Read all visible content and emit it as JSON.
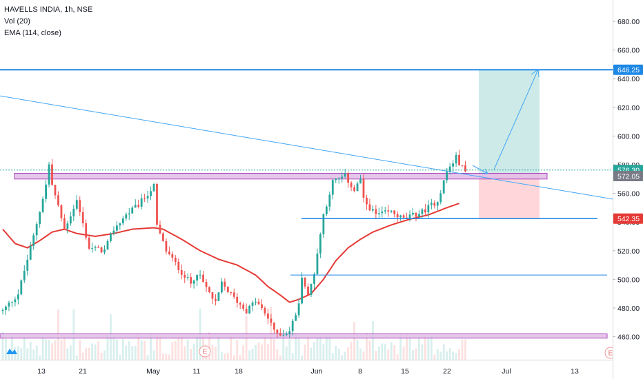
{
  "legend": {
    "symbol": "HAVELLS INDIA, 1h, NSE",
    "volume": "Vol (20)",
    "ema": "EMA (114, close)"
  },
  "colors": {
    "up": "#26a69a",
    "down": "#ef5350",
    "ema": "#e53935",
    "trendline": "#42a5f5",
    "hline": "#1e88e5",
    "zone_fill": "#e1bee7",
    "zone_stroke": "#9c27b0",
    "target_fill": "#b2dfdb",
    "stop_fill": "#ffcdd2"
  },
  "chart_data": {
    "type": "candlestick",
    "x_labels": [
      "13",
      "21",
      "May",
      "11",
      "18",
      "Jun",
      "8",
      "15",
      "22",
      "Jul",
      "13"
    ],
    "y_ticks": [
      460,
      480,
      500,
      520,
      540,
      560,
      580,
      600,
      620,
      640,
      660,
      680
    ],
    "ylim": [
      447,
      694
    ],
    "price_labels": [
      {
        "value": 646.25,
        "text": "646.25",
        "color": "#1e88e5"
      },
      {
        "value": 576.3,
        "text": "576.30",
        "color": "#26a69a"
      },
      {
        "value": 572.05,
        "text": "572.05",
        "color": "#787b86"
      },
      {
        "value": 542.35,
        "text": "542.35",
        "color": "#e53935"
      }
    ],
    "price_path": [
      [
        0,
        478
      ],
      [
        5,
        490
      ],
      [
        10,
        530
      ],
      [
        14,
        566
      ],
      [
        15,
        580
      ],
      [
        16,
        566
      ],
      [
        20,
        535
      ],
      [
        24,
        555
      ],
      [
        28,
        522
      ],
      [
        33,
        520
      ],
      [
        36,
        535
      ],
      [
        40,
        545
      ],
      [
        44,
        552
      ],
      [
        49,
        565
      ],
      [
        50,
        537
      ],
      [
        53,
        520
      ],
      [
        58,
        505
      ],
      [
        61,
        497
      ],
      [
        63,
        505
      ],
      [
        69,
        483
      ],
      [
        71,
        497
      ],
      [
        75,
        487
      ],
      [
        79,
        478
      ],
      [
        82,
        485
      ],
      [
        87,
        470
      ],
      [
        88,
        463
      ],
      [
        91,
        462
      ],
      [
        93,
        464
      ],
      [
        96,
        482
      ],
      [
        97,
        503
      ],
      [
        99,
        488
      ],
      [
        101,
        505
      ],
      [
        104,
        545
      ],
      [
        107,
        568
      ],
      [
        111,
        572
      ],
      [
        114,
        562
      ],
      [
        116,
        570
      ],
      [
        117,
        555
      ],
      [
        121,
        545
      ],
      [
        126,
        547
      ],
      [
        130,
        542
      ],
      [
        136,
        547
      ],
      [
        141,
        555
      ],
      [
        144,
        575
      ],
      [
        147,
        585
      ],
      [
        149,
        578
      ],
      [
        150,
        575
      ]
    ],
    "ema_path": [
      [
        0,
        535
      ],
      [
        4,
        525
      ],
      [
        8,
        522
      ],
      [
        12,
        527
      ],
      [
        16,
        533
      ],
      [
        20,
        535
      ],
      [
        24,
        532
      ],
      [
        30,
        530
      ],
      [
        36,
        532
      ],
      [
        42,
        535
      ],
      [
        49,
        536
      ],
      [
        52,
        535
      ],
      [
        58,
        528
      ],
      [
        64,
        520
      ],
      [
        70,
        514
      ],
      [
        76,
        510
      ],
      [
        82,
        503
      ],
      [
        86,
        495
      ],
      [
        90,
        489
      ],
      [
        93,
        484
      ],
      [
        96,
        486
      ],
      [
        100,
        490
      ],
      [
        104,
        500
      ],
      [
        108,
        513
      ],
      [
        112,
        522
      ],
      [
        116,
        528
      ],
      [
        120,
        533
      ],
      [
        126,
        538
      ],
      [
        132,
        542
      ],
      [
        138,
        545
      ],
      [
        144,
        550
      ],
      [
        148,
        553
      ]
    ],
    "annotations": {
      "resistance_level": 646.25,
      "upper_zone": [
        570,
        574
      ],
      "lower_zone": [
        459,
        462
      ],
      "support_line": 542.35,
      "mid_line": 503,
      "descending_trendline": [
        [
          0,
          628
        ],
        [
          196,
          556
        ]
      ],
      "position_entry": 574,
      "position_target": 646.25,
      "position_stop": 542.35
    }
  }
}
